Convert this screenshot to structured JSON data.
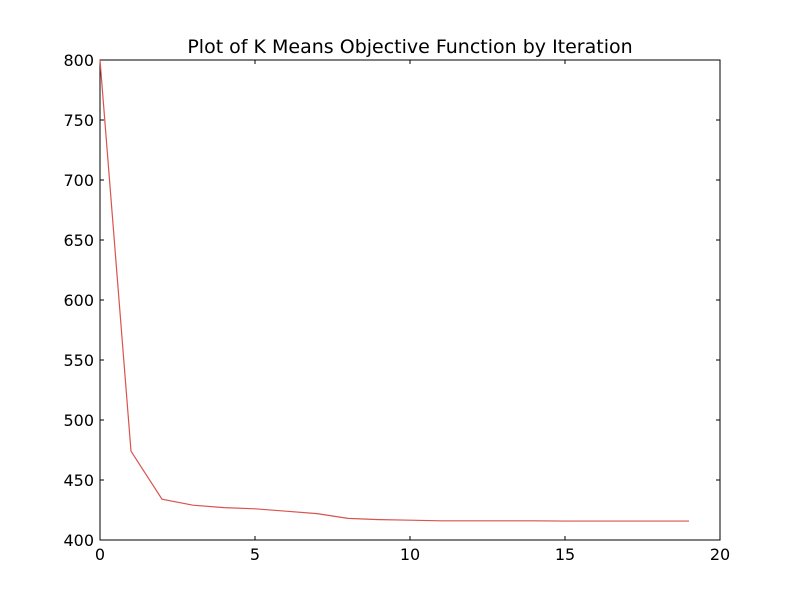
{
  "chart_data": {
    "type": "line",
    "title": "Plot of K Means Objective Function by Iteration",
    "xlabel": "",
    "ylabel": "",
    "xlim": [
      0,
      20
    ],
    "ylim": [
      400,
      800
    ],
    "xticks": [
      0,
      5,
      10,
      15,
      20
    ],
    "yticks": [
      400,
      450,
      500,
      550,
      600,
      650,
      700,
      750,
      800
    ],
    "grid": false,
    "series": [
      {
        "color": "#d9534f",
        "x": [
          0,
          1,
          2,
          3,
          4,
          5,
          6,
          7,
          8,
          9,
          10,
          11,
          12,
          13,
          14,
          15,
          16,
          17,
          18,
          19
        ],
        "y": [
          800,
          474,
          434,
          429,
          427,
          426,
          424,
          422,
          418,
          417,
          416.5,
          416,
          416,
          416,
          416,
          415.8,
          415.8,
          415.8,
          415.8,
          415.8
        ]
      }
    ]
  }
}
